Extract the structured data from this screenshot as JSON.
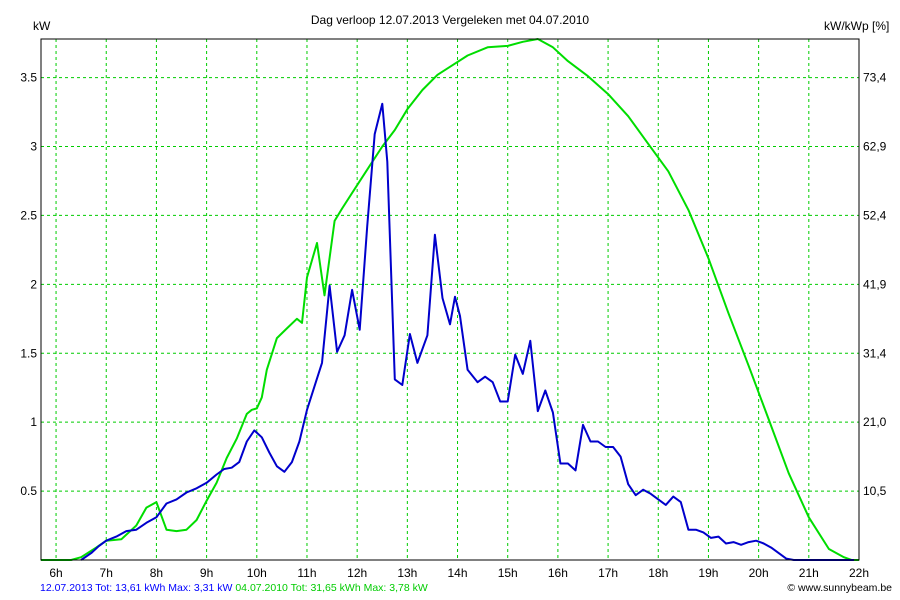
{
  "chart_data": {
    "type": "line",
    "title": "Dag  verloop 12.07.2013   Vergeleken met 04.07.2010",
    "ylabel_left": "kW",
    "ylabel_right": "kW/kWp [%]",
    "xlim": [
      5.7,
      22.0
    ],
    "ylim": [
      0,
      3.78
    ],
    "y_ticks": [
      0.5,
      1,
      1.5,
      2,
      2.5,
      3,
      3.5
    ],
    "y_tick_labels": [
      "0.5",
      "1",
      "1.5",
      "2",
      "2.5",
      "3",
      "3.5"
    ],
    "y2_tick_labels": [
      "10,5",
      "21,0",
      "31,4",
      "41,9",
      "52,4",
      "62,9",
      "73,4"
    ],
    "x_ticks": [
      6,
      7,
      8,
      9,
      10,
      11,
      12,
      13,
      14,
      15,
      16,
      17,
      18,
      19,
      20,
      21,
      22
    ],
    "x_tick_labels": [
      "6h",
      "7h",
      "8h",
      "9h",
      "10h",
      "11h",
      "12h",
      "13h",
      "14h",
      "15h",
      "16h",
      "17h",
      "18h",
      "19h",
      "20h",
      "21h",
      "22h"
    ],
    "grid": true,
    "series": [
      {
        "name": "12.07.2013",
        "color": "#0000cc",
        "x": [
          6.5,
          6.7,
          6.85,
          7.0,
          7.2,
          7.4,
          7.6,
          7.8,
          8.0,
          8.2,
          8.4,
          8.6,
          8.8,
          9.0,
          9.2,
          9.35,
          9.5,
          9.65,
          9.8,
          9.95,
          10.1,
          10.25,
          10.4,
          10.55,
          10.7,
          10.85,
          11.0,
          11.15,
          11.3,
          11.45,
          11.6,
          11.75,
          11.9,
          12.05,
          12.2,
          12.35,
          12.5,
          12.6,
          12.75,
          12.9,
          13.05,
          13.2,
          13.4,
          13.55,
          13.7,
          13.85,
          13.95,
          14.05,
          14.2,
          14.4,
          14.55,
          14.7,
          14.85,
          15.0,
          15.15,
          15.3,
          15.45,
          15.6,
          15.75,
          15.9,
          16.05,
          16.2,
          16.35,
          16.5,
          16.65,
          16.8,
          16.95,
          17.1,
          17.25,
          17.4,
          17.55,
          17.7,
          17.85,
          18.0,
          18.15,
          18.3,
          18.45,
          18.6,
          18.75,
          18.9,
          19.05,
          19.2,
          19.35,
          19.5,
          19.65,
          19.8,
          19.95,
          20.1,
          20.25,
          20.4,
          20.55,
          20.7,
          20.85,
          21.0,
          21.15,
          21.3,
          21.45,
          21.6,
          21.75,
          21.9
        ],
        "values": [
          0.0,
          0.05,
          0.1,
          0.14,
          0.17,
          0.21,
          0.22,
          0.27,
          0.31,
          0.41,
          0.44,
          0.49,
          0.52,
          0.56,
          0.62,
          0.66,
          0.67,
          0.71,
          0.86,
          0.94,
          0.89,
          0.78,
          0.68,
          0.64,
          0.71,
          0.86,
          1.09,
          1.26,
          1.43,
          1.99,
          1.51,
          1.63,
          1.96,
          1.67,
          2.42,
          3.09,
          3.31,
          2.89,
          1.31,
          1.27,
          1.64,
          1.43,
          1.63,
          2.36,
          1.9,
          1.71,
          1.91,
          1.77,
          1.38,
          1.29,
          1.33,
          1.29,
          1.15,
          1.15,
          1.49,
          1.35,
          1.59,
          1.08,
          1.23,
          1.07,
          0.7,
          0.7,
          0.65,
          0.98,
          0.86,
          0.86,
          0.82,
          0.82,
          0.75,
          0.55,
          0.47,
          0.51,
          0.48,
          0.44,
          0.4,
          0.46,
          0.42,
          0.22,
          0.22,
          0.2,
          0.16,
          0.17,
          0.12,
          0.13,
          0.11,
          0.13,
          0.14,
          0.12,
          0.09,
          0.05,
          0.01,
          0.0,
          0.0,
          0.0,
          0.0,
          0.0,
          0.0,
          0.0,
          0.0,
          0.0
        ]
      },
      {
        "name": "04.07.2010",
        "color": "#00dd00",
        "x": [
          5.7,
          6.3,
          6.5,
          6.8,
          7.0,
          7.3,
          7.6,
          7.8,
          8.0,
          8.2,
          8.4,
          8.6,
          8.8,
          9.0,
          9.2,
          9.4,
          9.6,
          9.8,
          9.9,
          10.0,
          10.1,
          10.2,
          10.4,
          10.6,
          10.8,
          10.9,
          11.0,
          11.2,
          11.35,
          11.55,
          11.7,
          12.0,
          12.25,
          12.5,
          12.75,
          13.0,
          13.3,
          13.6,
          13.9,
          14.2,
          14.6,
          15.0,
          15.3,
          15.6,
          15.9,
          16.2,
          16.6,
          17.0,
          17.4,
          17.8,
          18.2,
          18.6,
          19.0,
          19.4,
          19.8,
          20.2,
          20.6,
          21.0,
          21.4,
          21.7,
          21.85,
          22.0
        ],
        "values": [
          0.0,
          0.0,
          0.02,
          0.09,
          0.14,
          0.15,
          0.25,
          0.38,
          0.42,
          0.22,
          0.21,
          0.22,
          0.29,
          0.43,
          0.56,
          0.74,
          0.88,
          1.06,
          1.09,
          1.1,
          1.18,
          1.38,
          1.61,
          1.68,
          1.75,
          1.72,
          2.05,
          2.3,
          1.92,
          2.46,
          2.55,
          2.72,
          2.86,
          3.0,
          3.12,
          3.27,
          3.41,
          3.52,
          3.59,
          3.66,
          3.72,
          3.73,
          3.76,
          3.78,
          3.72,
          3.62,
          3.51,
          3.38,
          3.22,
          3.02,
          2.82,
          2.54,
          2.19,
          1.79,
          1.41,
          1.02,
          0.63,
          0.31,
          0.08,
          0.02,
          0.0,
          0.0
        ]
      }
    ]
  },
  "footer": {
    "blue_text": "12.07.2013 Tot: 13,61 kWh Max: 3,31 kW",
    "green_text": "04.07.2010 Tot: 31,65 kWh Max: 3,78 kW",
    "credit": "© www.sunnybeam.be"
  }
}
